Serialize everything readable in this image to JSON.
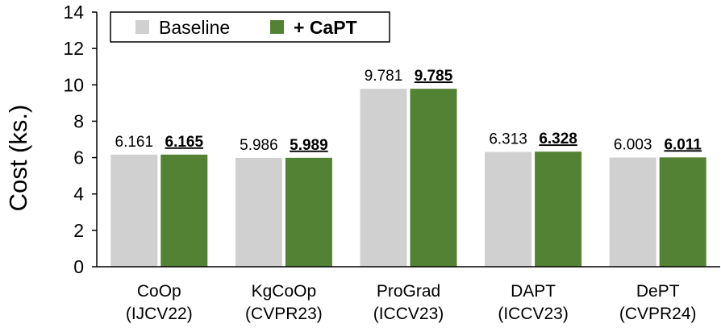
{
  "chart_data": {
    "type": "bar",
    "ylabel": "Cost (ks.)",
    "ylim": [
      0,
      14
    ],
    "yticks": [
      "0",
      "2",
      "4",
      "6",
      "8",
      "10",
      "12",
      "14"
    ],
    "categories": [
      [
        "CoOp",
        "(IJCV22)"
      ],
      [
        "KgCoOp",
        "(CVPR23)"
      ],
      [
        "ProGrad",
        "(ICCV23)"
      ],
      [
        "DAPT",
        "(ICCV23)"
      ],
      [
        "DePT",
        "(CVPR24)"
      ]
    ],
    "series": [
      {
        "name": "Baseline",
        "color": "#d0d0d0",
        "values": [
          6.161,
          5.986,
          9.781,
          6.313,
          6.003
        ],
        "labels": [
          "6.161",
          "5.986",
          "9.781",
          "6.313",
          "6.003"
        ],
        "label_style": "normal"
      },
      {
        "name": "+ CaPT",
        "color": "#548235",
        "values": [
          6.165,
          5.989,
          9.785,
          6.328,
          6.011
        ],
        "labels": [
          "6.165",
          "5.989",
          "9.785",
          "6.328",
          "6.011"
        ],
        "label_style": "bold-underline"
      }
    ],
    "legend": "top-left",
    "grid": false
  }
}
